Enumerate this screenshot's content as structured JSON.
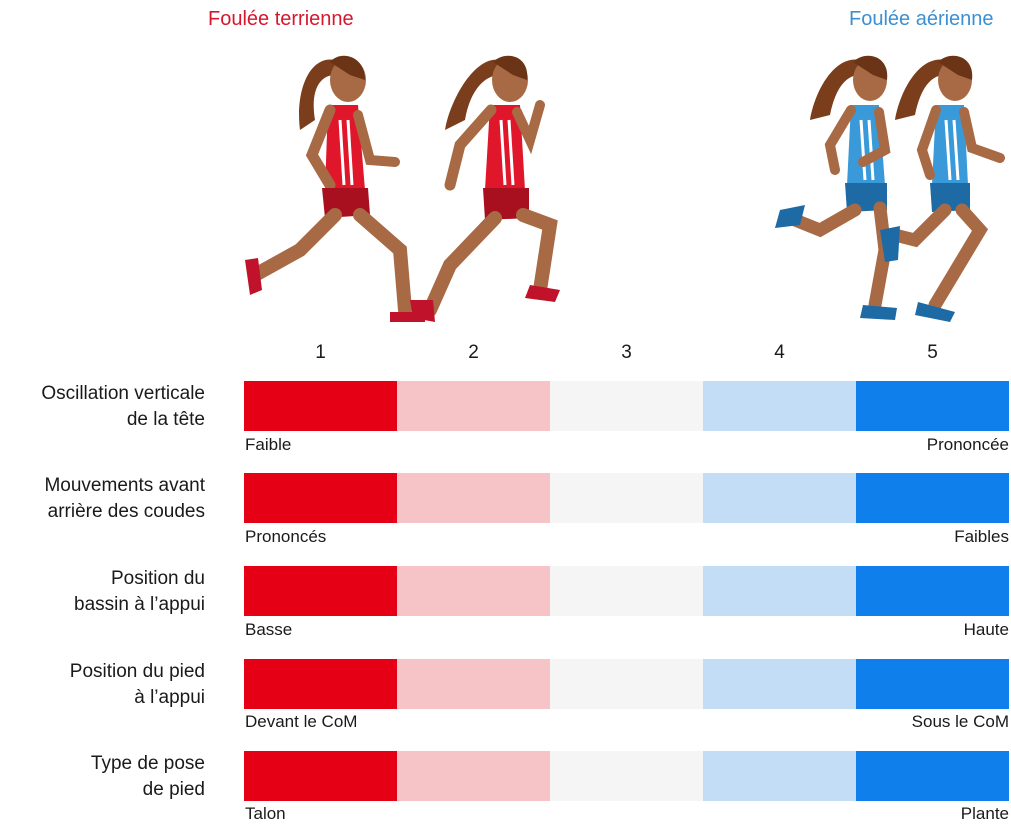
{
  "header": {
    "left_title": "Foulée terrienne",
    "right_title": "Foulée aérienne"
  },
  "colors": {
    "terrestrial": "#e3001b",
    "aerial": "#3a9ad9",
    "scale": [
      "#e60016",
      "#f6c3c7",
      "#f5f5f5",
      "#c4ddf7",
      "#0f7fec"
    ]
  },
  "scale_numbers": [
    "1",
    "2",
    "3",
    "4",
    "5"
  ],
  "rows": [
    {
      "label_line1": "Oscillation verticale",
      "label_line2": "de la tête",
      "left_end": "Faible",
      "right_end": "Prononcée"
    },
    {
      "label_line1": "Mouvements avant",
      "label_line2": "arrière des coudes",
      "left_end": "Prononcés",
      "right_end": "Faibles"
    },
    {
      "label_line1": "Position du",
      "label_line2": "bassin à l’appui",
      "left_end": "Basse",
      "right_end": "Haute"
    },
    {
      "label_line1": "Position du pied",
      "label_line2": "à l’appui",
      "left_end": "Devant le CoM",
      "right_end": "Sous le CoM"
    },
    {
      "label_line1": "Type de pose",
      "label_line2": "de pied",
      "left_end": "Talon",
      "right_end": "Plante"
    }
  ]
}
